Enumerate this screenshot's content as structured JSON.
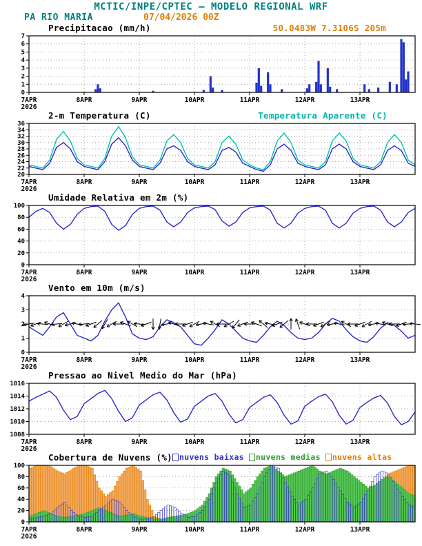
{
  "header": {
    "title": "MCTIC/INPE/CPTEC — MODELO REGIONAL WRF",
    "station": "PA RIO MARIA",
    "run_datetime": "07/04/2026 00Z",
    "colors": {
      "teal": "#008080",
      "orange": "#e07f00"
    }
  },
  "x_axis": {
    "hours_total": 168,
    "tick_hours": [
      0,
      24,
      48,
      72,
      96,
      120,
      144
    ],
    "tick_labels": [
      "7APR",
      "8APR",
      "9APR",
      "10APR",
      "11APR",
      "12APR",
      "13APR"
    ],
    "year_label": "2026"
  },
  "chart_data": [
    {
      "id": "precipitation",
      "type": "bar",
      "title": "Precipitacao (mm/h)",
      "right_label": "50.0483W 7.3106S 205m",
      "ylim": [
        0,
        7
      ],
      "yticks": [
        0,
        1,
        2,
        3,
        4,
        5,
        6,
        7
      ],
      "bar_color": "#2233cc",
      "events": [
        [
          29,
          0.4
        ],
        [
          30,
          1.0
        ],
        [
          31,
          0.5
        ],
        [
          54,
          0.2
        ],
        [
          76,
          0.3
        ],
        [
          79,
          2.0
        ],
        [
          80,
          0.6
        ],
        [
          84,
          0.3
        ],
        [
          99,
          1.2
        ],
        [
          100,
          3.0
        ],
        [
          101,
          0.8
        ],
        [
          104,
          2.5
        ],
        [
          105,
          1.0
        ],
        [
          110,
          0.4
        ],
        [
          121,
          0.5
        ],
        [
          122,
          1.0
        ],
        [
          125,
          1.3
        ],
        [
          126,
          3.9
        ],
        [
          127,
          1.0
        ],
        [
          130,
          3.0
        ],
        [
          131,
          0.7
        ],
        [
          134,
          0.4
        ],
        [
          146,
          1.0
        ],
        [
          148,
          0.4
        ],
        [
          152,
          0.6
        ],
        [
          157,
          1.3
        ],
        [
          160,
          1.0
        ],
        [
          162,
          6.6
        ],
        [
          163,
          6.2
        ],
        [
          164,
          1.6
        ],
        [
          165,
          2.6
        ]
      ]
    },
    {
      "id": "temperature",
      "type": "line",
      "title": "2-m Temperatura (C)",
      "right_label": "Temperatura Aparente (C)",
      "right_label_color": "#00b8a8",
      "ylim": [
        20,
        36
      ],
      "yticks": [
        20,
        22,
        24,
        26,
        28,
        30,
        32,
        34,
        36
      ],
      "step_hours": 3,
      "series": [
        {
          "name": "2-m Temperatura",
          "color": "#2a2acc",
          "values": [
            22.5,
            22,
            21.5,
            23.5,
            28.5,
            30,
            28,
            24,
            22.5,
            22,
            21.5,
            24,
            29.5,
            31.5,
            29,
            24.5,
            22.5,
            22,
            21.5,
            23.5,
            28,
            29,
            27.5,
            24,
            22.5,
            22,
            21.5,
            23,
            27.5,
            28.5,
            27,
            23.5,
            22.5,
            21.5,
            21,
            23,
            28,
            29.5,
            27.5,
            23.5,
            22.5,
            22,
            21.5,
            23,
            28,
            29.5,
            28,
            24,
            22.5,
            22,
            21.5,
            23,
            27.5,
            29,
            27.5,
            23.5,
            22.5
          ]
        },
        {
          "name": "Temperatura Aparente",
          "color": "#00c2b0",
          "values": [
            23,
            22.5,
            22,
            24.5,
            31,
            33.5,
            30.5,
            25,
            23,
            22.5,
            22,
            25,
            32,
            35,
            31.5,
            25.5,
            23,
            22.5,
            22,
            24.5,
            30.5,
            32.5,
            30,
            25,
            23,
            22.5,
            22,
            24,
            30,
            32,
            29.5,
            24.5,
            23,
            22,
            21.5,
            24,
            30.5,
            33,
            30,
            24.5,
            23,
            22.5,
            22,
            24,
            30.5,
            33,
            30.5,
            25,
            23,
            22.5,
            22,
            24,
            30,
            32.5,
            30,
            24.5,
            23
          ]
        }
      ]
    },
    {
      "id": "humidity",
      "type": "line",
      "title": "Umidade Relativa em 2m (%)",
      "ylim": [
        0,
        100
      ],
      "yticks": [
        0,
        20,
        40,
        60,
        80,
        100
      ],
      "step_hours": 3,
      "series": [
        {
          "name": "Umidade Relativa",
          "color": "#2a2acc",
          "values": [
            80,
            90,
            95,
            88,
            70,
            60,
            68,
            85,
            95,
            98,
            99,
            90,
            68,
            58,
            66,
            85,
            95,
            98,
            99,
            92,
            72,
            64,
            72,
            88,
            96,
            98,
            99,
            93,
            74,
            65,
            72,
            88,
            96,
            98,
            99,
            92,
            70,
            62,
            70,
            87,
            95,
            98,
            99,
            92,
            70,
            62,
            70,
            87,
            95,
            98,
            99,
            92,
            72,
            64,
            72,
            88,
            95
          ]
        }
      ]
    },
    {
      "id": "wind",
      "type": "wind",
      "title": "Vento em 10m (m/s)",
      "ylim": [
        0,
        4
      ],
      "yticks": [
        0,
        1,
        2,
        3,
        4
      ],
      "step_hours": 3,
      "arrow_y": 2,
      "arrow_color": "#000000",
      "arrow_dirs_deg": [
        170,
        160,
        185,
        200,
        175,
        150,
        165,
        190,
        175,
        160,
        140,
        120,
        150,
        180,
        200,
        210,
        185,
        160,
        90,
        100,
        170,
        200,
        180,
        160,
        150,
        170,
        190,
        210,
        180,
        150,
        130,
        160,
        180,
        200,
        220,
        190,
        160,
        140,
        270,
        250,
        200,
        180,
        160,
        150,
        170,
        190,
        210,
        180,
        160,
        150,
        170,
        190,
        200,
        180,
        160,
        175,
        185
      ],
      "series": [
        {
          "name": "Vento 10m",
          "color": "#2a2acc",
          "values": [
            1.8,
            1.5,
            1.2,
            1.8,
            2.5,
            2.8,
            2.0,
            1.2,
            1.0,
            0.8,
            1.2,
            2.2,
            3.0,
            3.5,
            2.5,
            1.3,
            1.0,
            0.9,
            1.1,
            1.8,
            2.3,
            2.1,
            1.8,
            1.2,
            0.6,
            0.5,
            1.0,
            1.6,
            2.3,
            2.0,
            1.5,
            1.0,
            0.8,
            0.7,
            1.2,
            1.8,
            2.2,
            1.9,
            1.4,
            1.0,
            0.9,
            1.0,
            1.4,
            2.0,
            2.4,
            2.2,
            1.6,
            1.1,
            0.8,
            0.7,
            1.1,
            1.7,
            2.1,
            1.9,
            1.5,
            1.0,
            1.2
          ]
        }
      ]
    },
    {
      "id": "pressure",
      "type": "line",
      "title": "Pressao ao Nivel Medio do Mar (hPa)",
      "ylim": [
        1008,
        1016
      ],
      "yticks": [
        1008,
        1010,
        1012,
        1014,
        1016
      ],
      "step_hours": 3,
      "series": [
        {
          "name": "Pressao",
          "color": "#2a2acc",
          "values": [
            1013.2,
            1013.8,
            1014.3,
            1014.8,
            1013.8,
            1011.8,
            1010.3,
            1010.8,
            1012.8,
            1013.6,
            1014.4,
            1014.9,
            1013.6,
            1011.6,
            1010.0,
            1010.6,
            1012.6,
            1013.4,
            1014.2,
            1014.6,
            1013.4,
            1011.4,
            1009.9,
            1010.4,
            1012.4,
            1013.2,
            1014.0,
            1014.4,
            1013.2,
            1011.2,
            1009.8,
            1010.3,
            1012.2,
            1013.0,
            1013.8,
            1014.2,
            1013.0,
            1011.0,
            1009.6,
            1010.1,
            1012.4,
            1013.2,
            1013.9,
            1014.3,
            1013.1,
            1011.0,
            1009.6,
            1010.2,
            1012.2,
            1013.0,
            1013.7,
            1014.1,
            1012.9,
            1010.8,
            1009.5,
            1010.0,
            1011.5
          ]
        }
      ]
    },
    {
      "id": "clouds",
      "type": "cloudbars",
      "title": "Cobertura de Nuvens (%)",
      "ylim": [
        0,
        100
      ],
      "yticks": [
        0,
        20,
        40,
        60,
        80,
        100
      ],
      "step_hours": 3,
      "series": [
        {
          "name": "nuvens baixas",
          "stroke": "#3333cc",
          "fill": "none",
          "values": [
            5,
            8,
            10,
            15,
            25,
            35,
            20,
            10,
            8,
            10,
            20,
            30,
            40,
            35,
            20,
            10,
            5,
            5,
            10,
            20,
            30,
            25,
            15,
            8,
            10,
            20,
            40,
            70,
            90,
            80,
            50,
            25,
            30,
            50,
            80,
            100,
            95,
            70,
            45,
            30,
            40,
            60,
            85,
            90,
            75,
            55,
            35,
            25,
            35,
            55,
            80,
            90,
            85,
            65,
            45,
            30,
            25
          ]
        },
        {
          "name": "nuvens medias",
          "stroke": "#2f9e2f",
          "fill": "#55c355",
          "values": [
            10,
            15,
            20,
            15,
            10,
            8,
            10,
            12,
            15,
            20,
            25,
            20,
            15,
            10,
            12,
            15,
            10,
            8,
            5,
            5,
            8,
            10,
            12,
            15,
            20,
            30,
            50,
            80,
            95,
            90,
            70,
            50,
            60,
            80,
            95,
            100,
            90,
            80,
            85,
            90,
            95,
            100,
            90,
            85,
            90,
            95,
            90,
            80,
            70,
            60,
            65,
            75,
            80,
            70,
            60,
            50,
            45
          ]
        },
        {
          "name": "nuvens altas",
          "stroke": "#e07f00",
          "fill": "#f2a85c",
          "values": [
            95,
            100,
            100,
            98,
            90,
            85,
            92,
            100,
            100,
            95,
            60,
            45,
            55,
            80,
            95,
            100,
            90,
            40,
            10,
            5,
            5,
            8,
            10,
            15,
            20,
            30,
            45,
            60,
            70,
            60,
            50,
            40,
            35,
            30,
            40,
            55,
            60,
            50,
            35,
            25,
            20,
            15,
            20,
            30,
            40,
            35,
            25,
            20,
            30,
            45,
            60,
            75,
            85,
            90,
            95,
            100,
            100
          ]
        }
      ]
    }
  ]
}
